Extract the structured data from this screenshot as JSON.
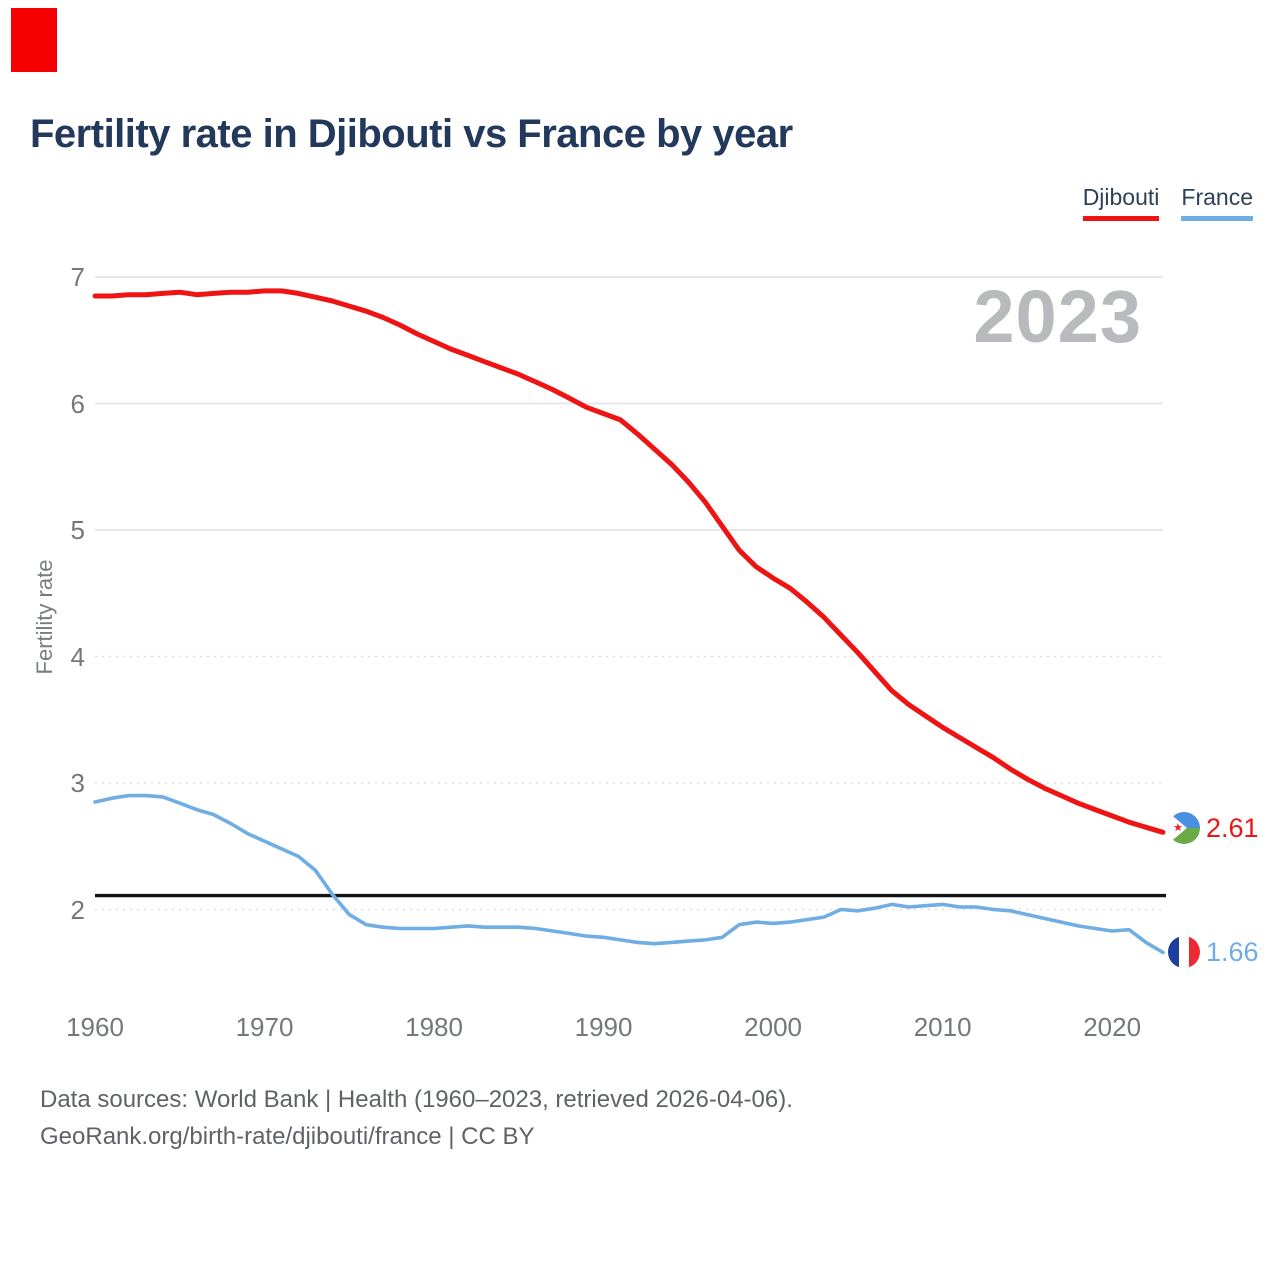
{
  "header": {
    "title": "Fertility rate in Djibouti vs France by year"
  },
  "annotation": {
    "marker_color": "#f40000"
  },
  "legend": [
    {
      "label": "Djibouti",
      "color": "#ef1414"
    },
    {
      "label": "France",
      "color": "#6fade3"
    }
  ],
  "chart_data": {
    "type": "line",
    "title": "Fertility rate in Djibouti vs France by year",
    "xlabel": "",
    "ylabel": "Fertility rate",
    "watermark": "2023",
    "grid": "horizontal",
    "legend_position": "top-right",
    "ylim": [
      1.5,
      7.05
    ],
    "x_ticks": [
      1960,
      1970,
      1980,
      1990,
      2000,
      2010,
      2020
    ],
    "y_ticks": [
      7,
      6,
      5,
      4,
      3,
      2
    ],
    "reference_line": {
      "value": 2.11,
      "color": "#101418"
    },
    "x": [
      1960,
      1961,
      1962,
      1963,
      1964,
      1965,
      1966,
      1967,
      1968,
      1969,
      1970,
      1971,
      1972,
      1973,
      1974,
      1975,
      1976,
      1977,
      1978,
      1979,
      1980,
      1981,
      1982,
      1983,
      1984,
      1985,
      1986,
      1987,
      1988,
      1989,
      1990,
      1991,
      1992,
      1993,
      1994,
      1995,
      1996,
      1997,
      1998,
      1999,
      2000,
      2001,
      2002,
      2003,
      2004,
      2005,
      2006,
      2007,
      2008,
      2009,
      2010,
      2011,
      2012,
      2013,
      2014,
      2015,
      2016,
      2017,
      2018,
      2019,
      2020,
      2021,
      2022,
      2023
    ],
    "series": [
      {
        "name": "Djibouti",
        "color": "#ef1414",
        "values": [
          6.85,
          6.85,
          6.86,
          6.86,
          6.87,
          6.88,
          6.86,
          6.87,
          6.88,
          6.88,
          6.89,
          6.89,
          6.87,
          6.84,
          6.81,
          6.77,
          6.73,
          6.68,
          6.62,
          6.55,
          6.49,
          6.43,
          6.38,
          6.33,
          6.28,
          6.23,
          6.17,
          6.11,
          6.04,
          5.97,
          5.92,
          5.87,
          5.76,
          5.64,
          5.52,
          5.38,
          5.22,
          5.03,
          4.84,
          4.71,
          4.62,
          4.54,
          4.43,
          4.31,
          4.17,
          4.03,
          3.88,
          3.73,
          3.62,
          3.53,
          3.44,
          3.36,
          3.28,
          3.2,
          3.11,
          3.03,
          2.96,
          2.9,
          2.84,
          2.79,
          2.74,
          2.69,
          2.65,
          2.61
        ]
      },
      {
        "name": "France",
        "color": "#6fade3",
        "values": [
          2.85,
          2.88,
          2.9,
          2.9,
          2.89,
          2.84,
          2.79,
          2.75,
          2.68,
          2.6,
          2.54,
          2.48,
          2.42,
          2.31,
          2.12,
          1.96,
          1.88,
          1.86,
          1.85,
          1.85,
          1.85,
          1.86,
          1.87,
          1.86,
          1.86,
          1.86,
          1.85,
          1.83,
          1.81,
          1.79,
          1.78,
          1.76,
          1.74,
          1.73,
          1.74,
          1.75,
          1.76,
          1.78,
          1.88,
          1.9,
          1.89,
          1.9,
          1.92,
          1.94,
          2.0,
          1.99,
          2.01,
          2.04,
          2.02,
          2.03,
          2.04,
          2.02,
          2.02,
          2.0,
          1.99,
          1.96,
          1.93,
          1.9,
          1.87,
          1.85,
          1.83,
          1.84,
          1.74,
          1.66
        ]
      }
    ],
    "end_labels": [
      {
        "series": "Djibouti",
        "value": "2.61"
      },
      {
        "series": "France",
        "value": "1.66"
      }
    ]
  },
  "footer": {
    "line1": "Data sources: World Bank | Health (1960–2023, retrieved 2026-04-06).",
    "line2": "GeoRank.org/birth-rate/djibouti/france | CC BY"
  }
}
